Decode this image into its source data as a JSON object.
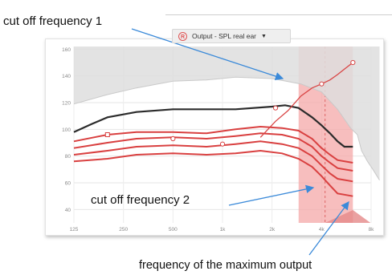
{
  "annotations": {
    "cutoff1": "cut off frequency 1",
    "cutoff2": "cut off frequency 2",
    "max_output": "frequency of the maximum  output"
  },
  "dropdown": {
    "badge": "R",
    "label": "Output - SPL real ear",
    "caret": "▼"
  },
  "chart_data": {
    "type": "line",
    "x_scale": "log",
    "x_ticks": [
      125,
      250,
      500,
      1000,
      2000,
      4000,
      8000
    ],
    "x_tick_labels": [
      "125",
      "250",
      "500",
      "1k",
      "2k",
      "4k",
      "8k"
    ],
    "y_ticks": [
      40,
      60,
      80,
      100,
      120,
      140,
      160
    ],
    "xlim": [
      125,
      8000
    ],
    "ylim": [
      30,
      162
    ],
    "grid": true,
    "colors": {
      "target": "#d94545",
      "curves": "#d94040",
      "mpo": "#2b2b2b",
      "shade": "#f4a8a8",
      "gray_fill": "#dedede",
      "arrow": "#3b8ad9"
    },
    "shaded_band": [
      2900,
      6200
    ],
    "series": [
      {
        "kind": "upper_limit",
        "x": [
          125,
          200,
          300,
          500,
          800,
          1200,
          2000,
          3000,
          4000,
          5000,
          6000,
          6600,
          7000,
          7600,
          8200,
          9000
        ],
        "y": [
          119,
          126,
          131,
          136,
          137,
          139,
          138,
          134,
          128,
          115,
          101,
          96,
          84,
          76,
          70,
          62
        ]
      },
      {
        "kind": "mpo",
        "x": [
          125,
          160,
          200,
          300,
          500,
          800,
          1200,
          2000,
          2400,
          2900,
          3500,
          4000,
          4500,
          5000,
          5500,
          6200
        ],
        "y": [
          98,
          104,
          109,
          113,
          115,
          115,
          115,
          117,
          118,
          116,
          109,
          103,
          97,
          91,
          87,
          87
        ]
      },
      {
        "kind": "target",
        "x": [
          1700,
          2100,
          2500,
          3000,
          3500,
          4000,
          4500,
          5000,
          5500,
          6200
        ],
        "y": [
          94,
          106,
          114,
          125,
          131,
          134,
          137,
          141,
          145,
          150
        ]
      },
      {
        "kind": "curve",
        "x": [
          125,
          200,
          300,
          500,
          800,
          1200,
          1700,
          2300,
          2900,
          3500,
          4000,
          4500,
          5000,
          6200
        ],
        "y": [
          91,
          96,
          98,
          98,
          97,
          100,
          102,
          101,
          99,
          93,
          86,
          81,
          77,
          75
        ]
      },
      {
        "kind": "curve",
        "x": [
          125,
          200,
          300,
          500,
          800,
          1200,
          1700,
          2300,
          2900,
          3500,
          4000,
          4500,
          5000,
          6200
        ],
        "y": [
          86,
          90,
          93,
          94,
          93,
          95,
          97,
          96,
          93,
          87,
          80,
          75,
          71,
          69
        ]
      },
      {
        "kind": "curve",
        "x": [
          125,
          200,
          300,
          500,
          800,
          1200,
          1700,
          2300,
          2900,
          3500,
          4000,
          4500,
          5000,
          6200
        ],
        "y": [
          81,
          84,
          87,
          88,
          87,
          89,
          91,
          89,
          86,
          80,
          73,
          67,
          63,
          61
        ]
      },
      {
        "kind": "curve",
        "x": [
          125,
          200,
          300,
          500,
          800,
          1200,
          1700,
          2300,
          2900,
          3500,
          4000,
          4500,
          5000,
          6200
        ],
        "y": [
          76,
          78,
          81,
          82,
          81,
          82,
          84,
          82,
          78,
          72,
          65,
          58,
          52,
          50
        ]
      }
    ],
    "markers": [
      {
        "kind": "square",
        "x": 200,
        "y": 96
      },
      {
        "kind": "circle",
        "x": 500,
        "y": 93
      },
      {
        "kind": "circle",
        "x": 1000,
        "y": 89
      },
      {
        "kind": "circle",
        "x": 2100,
        "y": 116
      },
      {
        "kind": "circle",
        "x": 4000,
        "y": 134
      },
      {
        "kind": "circle",
        "x": 6200,
        "y": 150
      }
    ]
  }
}
